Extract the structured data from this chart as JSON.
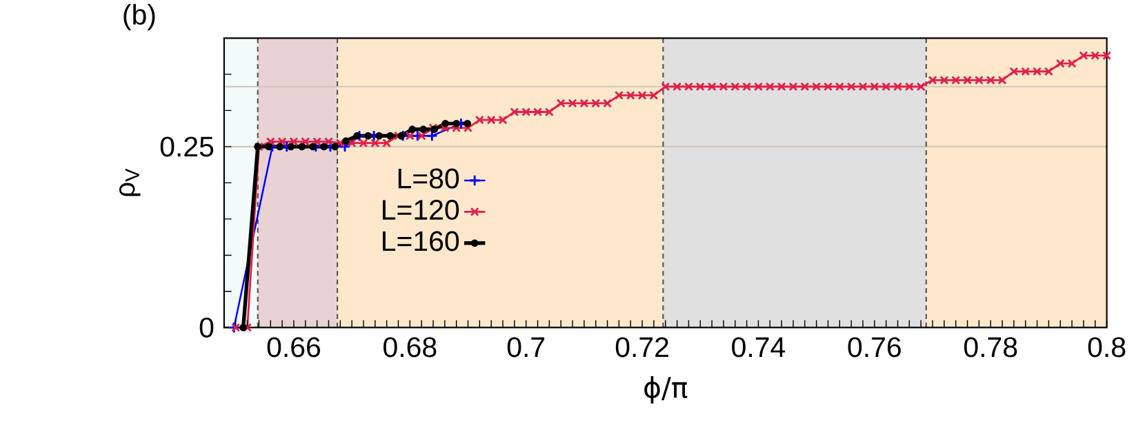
{
  "chart_data": {
    "type": "line",
    "title": "(b)",
    "xlabel": "ϕ/π",
    "ylabel": "ρ$_{V}$",
    "xlim": [
      0.648,
      0.8
    ],
    "ylim": [
      0,
      0.4
    ],
    "xticks": [
      {
        "value": 0.65,
        "label": null
      },
      {
        "value": 0.652,
        "label": null
      },
      {
        "value": 0.654,
        "label": null
      },
      {
        "value": 0.656,
        "label": null
      },
      {
        "value": 0.658,
        "label": null
      },
      0.66,
      {
        "value": 0.662,
        "label": null
      },
      {
        "value": 0.664,
        "label": null
      },
      {
        "value": 0.666,
        "label": null
      },
      {
        "value": 0.668,
        "label": null
      },
      {
        "value": 0.67,
        "label": null
      },
      {
        "value": 0.672,
        "label": null
      },
      {
        "value": 0.674,
        "label": null
      },
      {
        "value": 0.676,
        "label": null
      },
      {
        "value": 0.678,
        "label": null
      },
      0.68,
      {
        "value": 0.682,
        "label": null
      },
      {
        "value": 0.684,
        "label": null
      },
      {
        "value": 0.686,
        "label": null
      },
      {
        "value": 0.688,
        "label": null
      },
      {
        "value": 0.69,
        "label": null
      },
      {
        "value": 0.692,
        "label": null
      },
      {
        "value": 0.694,
        "label": null
      },
      {
        "value": 0.696,
        "label": null
      },
      {
        "value": 0.698,
        "label": null
      },
      0.7,
      {
        "value": 0.702,
        "label": null
      },
      {
        "value": 0.704,
        "label": null
      },
      {
        "value": 0.706,
        "label": null
      },
      {
        "value": 0.708,
        "label": null
      },
      {
        "value": 0.71,
        "label": null
      },
      {
        "value": 0.712,
        "label": null
      },
      {
        "value": 0.714,
        "label": null
      },
      {
        "value": 0.716,
        "label": null
      },
      {
        "value": 0.718,
        "label": null
      },
      0.72,
      {
        "value": 0.722,
        "label": null
      },
      {
        "value": 0.724,
        "label": null
      },
      {
        "value": 0.726,
        "label": null
      },
      {
        "value": 0.728,
        "label": null
      },
      {
        "value": 0.73,
        "label": null
      },
      {
        "value": 0.732,
        "label": null
      },
      {
        "value": 0.734,
        "label": null
      },
      {
        "value": 0.736,
        "label": null
      },
      {
        "value": 0.738,
        "label": null
      },
      0.74,
      {
        "value": 0.742,
        "label": null
      },
      {
        "value": 0.744,
        "label": null
      },
      {
        "value": 0.746,
        "label": null
      },
      {
        "value": 0.748,
        "label": null
      },
      {
        "value": 0.75,
        "label": null
      },
      {
        "value": 0.752,
        "label": null
      },
      {
        "value": 0.754,
        "label": null
      },
      {
        "value": 0.756,
        "label": null
      },
      {
        "value": 0.758,
        "label": null
      },
      0.76,
      {
        "value": 0.762,
        "label": null
      },
      {
        "value": 0.764,
        "label": null
      },
      {
        "value": 0.766,
        "label": null
      },
      {
        "value": 0.768,
        "label": null
      },
      {
        "value": 0.77,
        "label": null
      },
      {
        "value": 0.772,
        "label": null
      },
      {
        "value": 0.774,
        "label": null
      },
      {
        "value": 0.776,
        "label": null
      },
      {
        "value": 0.778,
        "label": null
      },
      0.78,
      {
        "value": 0.782,
        "label": null
      },
      {
        "value": 0.784,
        "label": null
      },
      {
        "value": 0.786,
        "label": null
      },
      {
        "value": 0.788,
        "label": null
      },
      {
        "value": 0.79,
        "label": null
      },
      {
        "value": 0.792,
        "label": null
      },
      {
        "value": 0.794,
        "label": null
      },
      {
        "value": 0.796,
        "label": null
      },
      {
        "value": 0.798,
        "label": null
      },
      0.8
    ],
    "yticks": [
      0,
      {
        "value": 0.05,
        "label": null
      },
      {
        "value": 0.1,
        "label": null
      },
      {
        "value": 0.15,
        "label": null
      },
      {
        "value": 0.2,
        "label": null
      },
      0.25,
      {
        "value": 0.3,
        "label": null
      },
      {
        "value": 0.35,
        "label": null
      }
    ],
    "legend": "left",
    "bands": [
      {
        "axis": "x",
        "from": 0.648,
        "to": 0.6538,
        "color": "#f3fafa"
      },
      {
        "axis": "x",
        "from": 0.6538,
        "to": 0.6675,
        "color": "#e8d2d4"
      },
      {
        "axis": "x",
        "from": 0.6675,
        "to": 0.7236,
        "color": "#fde8cc"
      },
      {
        "axis": "x",
        "from": 0.7236,
        "to": 0.7689,
        "color": "#e0e0e0"
      },
      {
        "axis": "x",
        "from": 0.7689,
        "to": 0.8,
        "color": "#fde8cc"
      }
    ],
    "ref_lines": [
      {
        "axis": "y",
        "value": 0.25,
        "color": "#cfc6bc",
        "line_style": "solid"
      },
      {
        "axis": "y",
        "value": 0.333,
        "color": "#cfc6bc",
        "line_style": "solid"
      },
      {
        "axis": "x",
        "value": 0.6538,
        "color": "#555555",
        "line_style": "dashed"
      },
      {
        "axis": "x",
        "value": 0.6675,
        "color": "#555555",
        "line_style": "dashed"
      },
      {
        "axis": "x",
        "value": 0.7236,
        "color": "#555555",
        "line_style": "dashed"
      },
      {
        "axis": "x",
        "value": 0.7689,
        "color": "#555555",
        "line_style": "dashed"
      }
    ],
    "series": [
      {
        "name": "L=80",
        "color": "#0000ff",
        "marker": "plus",
        "line_style": "solid",
        "x": [
          0.6497,
          0.6538,
          0.6563,
          0.6588,
          0.6613,
          0.6638,
          0.6663,
          0.6688,
          0.6713,
          0.6738,
          0.6763,
          0.6788,
          0.6813,
          0.6838,
          0.6863,
          0.6888
        ],
        "values": [
          0,
          null,
          0.25,
          0.25,
          null,
          0.25,
          0.25,
          0.25,
          0.265,
          0.265,
          null,
          0.265,
          0.265,
          0.265,
          null,
          0.282
        ]
      },
      {
        "name": "L=120",
        "color": "#e0204a",
        "marker": "cross",
        "line_style": "solid",
        "x": [
          0.65,
          0.652,
          0.654,
          0.656,
          0.658,
          0.66,
          0.662,
          0.664,
          0.666,
          0.668,
          0.67,
          0.672,
          0.674,
          0.676,
          0.678,
          0.68,
          0.682,
          0.684,
          0.686,
          0.688,
          0.69,
          0.692,
          0.694,
          0.696,
          0.698,
          0.7,
          0.702,
          0.704,
          0.706,
          0.708,
          0.71,
          0.712,
          0.714,
          0.716,
          0.718,
          0.72,
          0.722,
          0.724,
          0.726,
          0.728,
          0.73,
          0.732,
          0.734,
          0.736,
          0.738,
          0.74,
          0.742,
          0.744,
          0.746,
          0.748,
          0.75,
          0.752,
          0.754,
          0.756,
          0.758,
          0.76,
          0.762,
          0.764,
          0.766,
          0.768,
          0.77,
          0.772,
          0.774,
          0.776,
          0.778,
          0.78,
          0.782,
          0.784,
          0.786,
          0.788,
          0.79,
          0.792,
          0.794,
          0.796,
          0.798,
          0.8
        ],
        "values": [
          0,
          0,
          0.25,
          0.257,
          0.257,
          0.257,
          0.257,
          0.257,
          0.257,
          0.255,
          0.255,
          0.255,
          0.255,
          0.255,
          0.265,
          0.265,
          0.265,
          0.276,
          0.276,
          0.276,
          0.276,
          0.287,
          0.287,
          0.287,
          0.298,
          0.298,
          0.298,
          0.298,
          0.31,
          0.31,
          0.31,
          0.31,
          0.31,
          0.321,
          0.321,
          0.321,
          0.321,
          0.333,
          0.333,
          0.333,
          0.333,
          0.333,
          0.333,
          0.333,
          0.333,
          0.333,
          0.333,
          0.333,
          0.333,
          0.333,
          0.333,
          0.333,
          0.333,
          0.333,
          0.333,
          0.333,
          0.333,
          0.333,
          0.333,
          0.333,
          0.342,
          0.342,
          0.342,
          0.342,
          0.342,
          0.342,
          0.342,
          0.354,
          0.354,
          0.354,
          0.354,
          0.365,
          0.365,
          0.376,
          0.376,
          0.376
        ]
      },
      {
        "name": "L=160",
        "color": "#000000",
        "marker": "circle",
        "line_style": "solid",
        "x": [
          0.6513,
          0.6538,
          0.6557,
          0.6576,
          0.6595,
          0.6614,
          0.6633,
          0.6652,
          0.6671,
          0.669,
          0.6709,
          0.6728,
          0.6747,
          0.6766,
          0.6785,
          0.6804,
          0.6823,
          0.6842,
          0.6861,
          0.688,
          0.6899
        ],
        "values": [
          0,
          0.25,
          0.25,
          0.25,
          0.25,
          0.25,
          0.25,
          0.25,
          0.25,
          0.258,
          0.265,
          0.265,
          0.265,
          0.265,
          0.265,
          0.274,
          0.274,
          0.274,
          0.282,
          0.282,
          0.282
        ]
      }
    ]
  }
}
